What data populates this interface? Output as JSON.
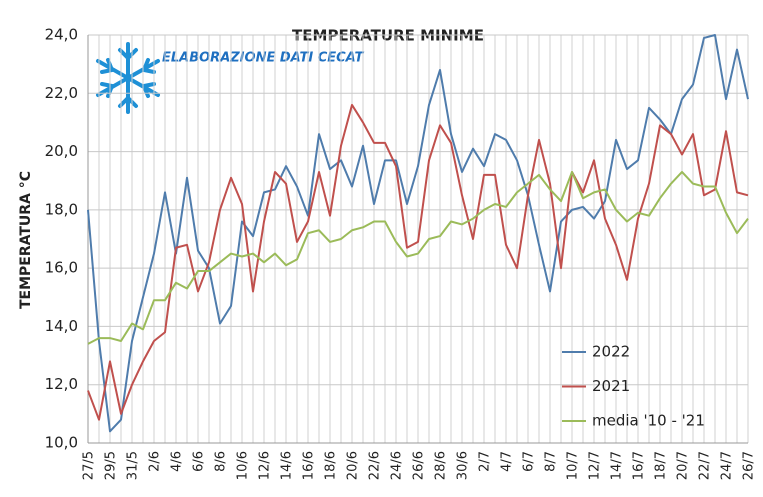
{
  "chart_data": {
    "type": "line",
    "title": "TEMPERATURE  MINIME",
    "subtitle": "ELABORAZIONE DATI CECAT",
    "y_label": "TEMPERATURA °C",
    "categories": [
      "27/5",
      null,
      "29/5",
      null,
      "31/5",
      null,
      "2/6",
      null,
      "4/6",
      null,
      "6/6",
      null,
      "8/6",
      null,
      "10/6",
      null,
      "12/6",
      null,
      "14/6",
      null,
      "16/6",
      null,
      "18/6",
      null,
      "20/6",
      null,
      "22/6",
      null,
      "24/6",
      null,
      "26/6",
      null,
      "28/6",
      null,
      "30/6",
      null,
      "2/7",
      null,
      "4/7",
      null,
      "6/7",
      null,
      "8/7",
      null,
      "10/7",
      null,
      "12/7",
      null,
      "14/7",
      null,
      "16/7",
      null,
      "18/7",
      null,
      "20/7",
      null,
      "22/7",
      null,
      "24/7",
      null,
      "26/7"
    ],
    "series": [
      {
        "name": "2022",
        "color": "#4f7cac",
        "values": [
          18.0,
          13.5,
          10.4,
          10.8,
          13.5,
          15.0,
          16.5,
          18.6,
          16.5,
          19.1,
          16.6,
          16.0,
          14.1,
          14.7,
          17.6,
          17.1,
          18.6,
          18.7,
          19.5,
          18.8,
          17.8,
          20.6,
          19.4,
          19.7,
          18.8,
          20.2,
          18.2,
          19.7,
          19.7,
          18.2,
          19.5,
          21.6,
          22.8,
          20.6,
          19.3,
          20.1,
          19.5,
          20.6,
          20.4,
          19.7,
          18.5,
          16.8,
          15.2,
          17.6,
          18.0,
          18.1,
          17.7,
          18.3,
          20.4,
          19.4,
          19.7,
          21.5,
          21.1,
          20.6,
          21.8,
          22.3,
          23.9,
          24.0,
          21.8,
          23.5,
          21.8
        ]
      },
      {
        "name": "2021",
        "color": "#c0504d",
        "values": [
          11.8,
          10.8,
          12.8,
          11.0,
          12.0,
          12.8,
          13.5,
          13.8,
          16.7,
          16.8,
          15.2,
          16.2,
          18.0,
          19.1,
          18.2,
          15.2,
          17.6,
          19.3,
          18.9,
          16.9,
          17.6,
          19.3,
          17.8,
          20.2,
          21.6,
          21.0,
          20.3,
          20.3,
          19.5,
          16.7,
          16.9,
          19.7,
          20.9,
          20.3,
          18.5,
          17.0,
          19.2,
          19.2,
          16.8,
          16.0,
          18.5,
          20.4,
          18.9,
          16.0,
          19.3,
          18.6,
          19.7,
          17.7,
          16.8,
          15.6,
          17.7,
          18.9,
          20.9,
          20.6,
          19.9,
          20.6,
          18.5,
          18.7,
          20.7,
          18.6,
          18.5
        ]
      },
      {
        "name": "media '10 - '21",
        "color": "#9bbb59",
        "values": [
          13.4,
          13.6,
          13.6,
          13.5,
          14.1,
          13.9,
          14.9,
          14.9,
          15.5,
          15.3,
          15.9,
          15.9,
          16.2,
          16.5,
          16.4,
          16.5,
          16.2,
          16.5,
          16.1,
          16.3,
          17.2,
          17.3,
          16.9,
          17.0,
          17.3,
          17.4,
          17.6,
          17.6,
          16.9,
          16.4,
          16.5,
          17.0,
          17.1,
          17.6,
          17.5,
          17.7,
          18.0,
          18.2,
          18.1,
          18.6,
          18.9,
          19.2,
          18.7,
          18.3,
          19.3,
          18.4,
          18.6,
          18.7,
          18.0,
          17.6,
          17.9,
          17.8,
          18.4,
          18.9,
          19.3,
          18.9,
          18.8,
          18.8,
          17.9,
          17.2,
          17.7
        ]
      }
    ],
    "ylim": [
      10,
      24
    ],
    "yticks": [
      {
        "value": 10,
        "label": "10,0"
      },
      {
        "value": 12,
        "label": "12,0"
      },
      {
        "value": 14,
        "label": "14,0"
      },
      {
        "value": 16,
        "label": "16,0"
      },
      {
        "value": 18,
        "label": "18,0"
      },
      {
        "value": 20,
        "label": "20,0"
      },
      {
        "value": 22,
        "label": "22,0"
      },
      {
        "value": 24,
        "label": "24,0"
      }
    ],
    "grid": true,
    "legend": "lower right"
  }
}
